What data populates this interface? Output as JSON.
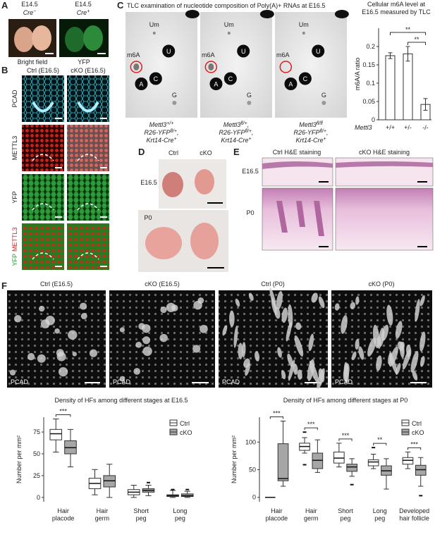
{
  "panel_labels": {
    "a": "A",
    "b": "B",
    "c": "C",
    "d": "D",
    "e": "E",
    "f": "F"
  },
  "panel_a": {
    "left_stage": "E14.5",
    "left_genotype": [
      "Cre",
      "−"
    ],
    "right_stage": "E14.5",
    "right_genotype": [
      "Cre",
      "+"
    ],
    "bright_field": "Bright field",
    "yfp": "YFP"
  },
  "panel_b": {
    "columns": [
      "Ctrl (E16.5)",
      "cKO (E16.5)"
    ],
    "rows": [
      "PCAD",
      "METTL3",
      "YFP"
    ],
    "merge_row": [
      "YFP",
      "METTL3"
    ]
  },
  "panel_c": {
    "title": "TLC examination of nucleotide composition of Poly(A)+ RNAs at E16.5",
    "spot_labels": [
      "Um",
      "m6A",
      "U",
      "A",
      "C",
      "G"
    ],
    "genotypes": [
      [
        [
          "Mettl3",
          "+/+"
        ],
        [
          "R26-YFP",
          "fl/+",
          ","
        ],
        [
          "Krt14-Cre",
          "+"
        ]
      ],
      [
        [
          "Mettl3",
          "fl/+",
          ","
        ],
        [
          "R26-YFP",
          "fl/+",
          ","
        ],
        [
          "Krt14-Cre",
          "+"
        ]
      ],
      [
        [
          "Mettl3",
          "fl/fl"
        ],
        [
          "R26-YFP",
          "fl/+",
          ","
        ],
        [
          "Krt14-Cre",
          "+"
        ]
      ]
    ]
  },
  "panel_d": {
    "columns": [
      "Ctrl",
      "cKO"
    ],
    "rows": [
      "E16.5",
      "P0"
    ]
  },
  "panel_e": {
    "columns": [
      "Ctrl H&E staining",
      "cKO H&E staining"
    ],
    "rows": [
      "E16.5",
      "P0"
    ]
  },
  "panel_f": {
    "image_labels": [
      "Ctrl (E16.5)",
      "cKO (E16.5)",
      "Ctrl (P0)",
      "cKO (P0)"
    ],
    "stain": "PCAD"
  },
  "chart_data": [
    {
      "type": "bar",
      "title": [
        "Cellular m6A level at",
        "E16.5 measured by TLC"
      ],
      "y_label": "m6A/A ratio",
      "x_label": "Mettl3",
      "categories": [
        "+/+",
        "+/-",
        "-/-"
      ],
      "values": [
        0.175,
        0.18,
        0.042
      ],
      "errors": [
        0.008,
        0.02,
        0.016
      ],
      "color": "#ffffff",
      "ylim": [
        0,
        0.25
      ],
      "yticks": [
        0,
        0.05,
        0.1,
        0.15,
        0.2
      ],
      "significance": [
        "**",
        "**"
      ]
    },
    {
      "type": "box",
      "title": "Density of HFs among different stages at E16.5",
      "y_label": "Number per mm²",
      "categories": [
        "Hair\nplacode",
        "Hair\ngerm",
        "Short\npeg",
        "Long\npeg"
      ],
      "ylim": [
        -5,
        92
      ],
      "yticks": [
        0,
        25,
        50,
        75
      ],
      "legend": "top-right",
      "series": [
        {
          "name": "Ctrl",
          "color": "#ffffff",
          "min": [
            52,
            3,
            0,
            0
          ],
          "q1": [
            66,
            10,
            3,
            1
          ],
          "median": [
            73,
            16,
            6,
            2
          ],
          "q3": [
            78,
            22,
            9,
            3
          ],
          "max": [
            90,
            32,
            14,
            8
          ],
          "outliers": [
            [],
            [],
            [],
            [
              9
            ]
          ]
        },
        {
          "name": "cKO",
          "color": "#a6a6a6",
          "min": [
            35,
            0,
            2,
            0
          ],
          "q1": [
            50,
            12,
            6,
            1
          ],
          "median": [
            57,
            19,
            8,
            2
          ],
          "q3": [
            65,
            25,
            10,
            4
          ],
          "max": [
            78,
            38,
            14,
            7
          ],
          "outliers": [
            [],
            [],
            [
              17
            ],
            [
              9
            ]
          ]
        }
      ],
      "significance": [
        "***",
        null,
        null,
        null
      ]
    },
    {
      "type": "box",
      "title": "Density of HFs among different stages at P0",
      "y_label": "Number per mm²",
      "categories": [
        "Hair\nplacode",
        "Hair\ngerm",
        "Short\npeg",
        "Long\npeg",
        "Developed\nhair follicle"
      ],
      "ylim": [
        -8,
        145
      ],
      "yticks": [
        0,
        50,
        100
      ],
      "legend": "top-right",
      "series": [
        {
          "name": "Ctrl",
          "color": "#ffffff",
          "min": [
            0,
            80,
            55,
            52,
            52
          ],
          "q1": [
            0,
            85,
            62,
            57,
            60
          ],
          "median": [
            0,
            92,
            71,
            64,
            67
          ],
          "q3": [
            0,
            98,
            82,
            68,
            72
          ],
          "max": [
            0,
            108,
            98,
            78,
            82
          ],
          "outliers": [
            [],
            [
              59,
              118
            ],
            [],
            [
              90
            ],
            []
          ]
        },
        {
          "name": "cKO",
          "color": "#a6a6a6",
          "min": [
            20,
            45,
            38,
            15,
            20
          ],
          "q1": [
            30,
            52,
            47,
            40,
            40
          ],
          "median": [
            34,
            67,
            55,
            48,
            50
          ],
          "q3": [
            97,
            80,
            60,
            57,
            58
          ],
          "max": [
            138,
            104,
            70,
            70,
            72
          ],
          "outliers": [
            [],
            [],
            [
              23
            ],
            [],
            [
              3
            ]
          ]
        }
      ],
      "significance": [
        "***",
        "***",
        "***",
        "**",
        "***"
      ]
    }
  ]
}
